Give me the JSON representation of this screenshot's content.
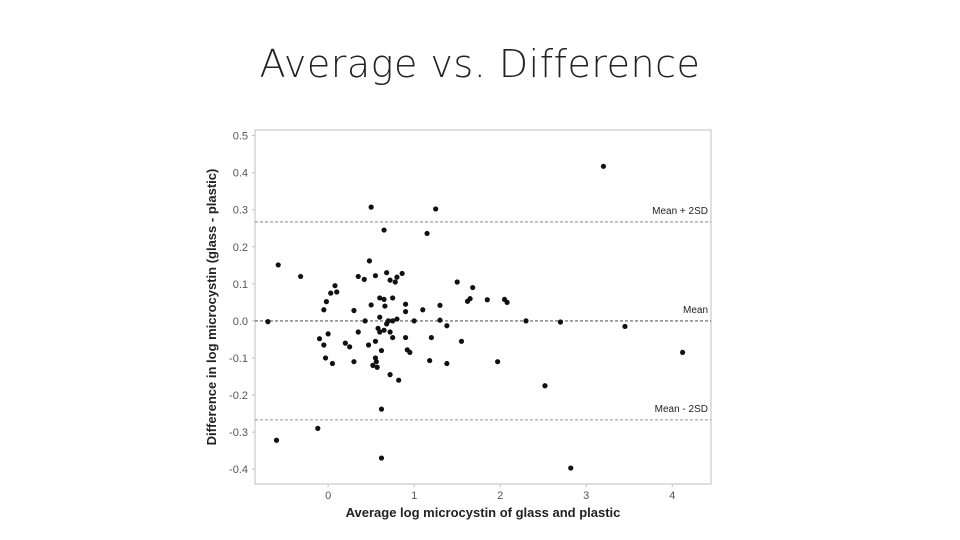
{
  "slide": {
    "title": "Average vs. Difference"
  },
  "chart_data": {
    "type": "scatter",
    "title": "",
    "xlabel": "Average log microcystin of glass and plastic",
    "ylabel": "Difference in log microcystin (glass - plastic)",
    "xlim": [
      -0.85,
      4.45
    ],
    "ylim": [
      -0.44,
      0.515
    ],
    "xticks": [
      0,
      1,
      2,
      3,
      4
    ],
    "xtick_labels": [
      "0",
      "1",
      "2",
      "3",
      "4"
    ],
    "yticks": [
      0.5,
      0.4,
      0.3,
      0.2,
      0.1,
      0.0,
      -0.1,
      -0.2,
      -0.3,
      -0.4
    ],
    "ytick_labels": [
      "0.5",
      "0.4",
      "0.3",
      "0.2",
      "0.1",
      "0.0",
      "-0.1",
      "-0.2",
      "-0.3",
      "-0.4"
    ],
    "grid": false,
    "reference_lines": [
      {
        "label": "Mean + 2SD",
        "y": 0.267
      },
      {
        "label": "Mean",
        "y": 0.0
      },
      {
        "label": "Mean - 2SD",
        "y": -0.267
      }
    ],
    "marker_color": "#111111",
    "line_color": "#777777",
    "points": [
      [
        3.2,
        0.417
      ],
      [
        0.5,
        0.307
      ],
      [
        1.25,
        0.302
      ],
      [
        0.65,
        0.245
      ],
      [
        1.15,
        0.236
      ],
      [
        -0.58,
        0.151
      ],
      [
        -0.32,
        0.12
      ],
      [
        0.48,
        0.162
      ],
      [
        0.35,
        0.12
      ],
      [
        0.42,
        0.112
      ],
      [
        0.55,
        0.122
      ],
      [
        0.68,
        0.13
      ],
      [
        0.72,
        0.11
      ],
      [
        0.8,
        0.118
      ],
      [
        0.86,
        0.128
      ],
      [
        0.78,
        0.105
      ],
      [
        1.5,
        0.105
      ],
      [
        1.68,
        0.09
      ],
      [
        0.08,
        0.095
      ],
      [
        0.03,
        0.075
      ],
      [
        0.1,
        0.078
      ],
      [
        -0.02,
        0.052
      ],
      [
        -0.05,
        0.03
      ],
      [
        0.6,
        0.062
      ],
      [
        0.65,
        0.058
      ],
      [
        0.75,
        0.062
      ],
      [
        0.5,
        0.043
      ],
      [
        0.9,
        0.045
      ],
      [
        1.1,
        0.03
      ],
      [
        0.66,
        0.04
      ],
      [
        0.3,
        0.028
      ],
      [
        0.9,
        0.025
      ],
      [
        1.3,
        0.042
      ],
      [
        1.65,
        0.06
      ],
      [
        1.85,
        0.057
      ],
      [
        2.05,
        0.058
      ],
      [
        2.08,
        0.05
      ],
      [
        1.62,
        0.053
      ],
      [
        -0.7,
        -0.002
      ],
      [
        0.43,
        0.0
      ],
      [
        0.6,
        0.01
      ],
      [
        0.7,
        0.0
      ],
      [
        0.75,
        0.0
      ],
      [
        0.68,
        -0.008
      ],
      [
        0.8,
        0.005
      ],
      [
        1.0,
        0.0
      ],
      [
        1.3,
        0.002
      ],
      [
        1.38,
        -0.013
      ],
      [
        2.3,
        0.0
      ],
      [
        2.7,
        -0.003
      ],
      [
        3.45,
        -0.015
      ],
      [
        0.0,
        -0.035
      ],
      [
        0.58,
        -0.02
      ],
      [
        0.65,
        -0.025
      ],
      [
        0.72,
        -0.03
      ],
      [
        0.6,
        -0.03
      ],
      [
        0.35,
        -0.03
      ],
      [
        0.75,
        -0.045
      ],
      [
        -0.1,
        -0.048
      ],
      [
        -0.05,
        -0.065
      ],
      [
        0.2,
        -0.06
      ],
      [
        0.25,
        -0.07
      ],
      [
        0.55,
        -0.055
      ],
      [
        0.9,
        -0.045
      ],
      [
        1.2,
        -0.045
      ],
      [
        1.55,
        -0.055
      ],
      [
        0.47,
        -0.065
      ],
      [
        0.62,
        -0.08
      ],
      [
        0.92,
        -0.078
      ],
      [
        0.95,
        -0.085
      ],
      [
        -0.03,
        -0.1
      ],
      [
        0.05,
        -0.115
      ],
      [
        0.3,
        -0.11
      ],
      [
        0.55,
        -0.1
      ],
      [
        0.56,
        -0.11
      ],
      [
        0.52,
        -0.12
      ],
      [
        0.57,
        -0.125
      ],
      [
        1.18,
        -0.107
      ],
      [
        1.38,
        -0.115
      ],
      [
        1.97,
        -0.11
      ],
      [
        0.72,
        -0.145
      ],
      [
        0.82,
        -0.16
      ],
      [
        4.12,
        -0.085
      ],
      [
        2.52,
        -0.175
      ],
      [
        0.62,
        -0.238
      ],
      [
        -0.12,
        -0.29
      ],
      [
        -0.6,
        -0.322
      ],
      [
        0.62,
        -0.37
      ],
      [
        2.82,
        -0.397
      ]
    ]
  }
}
